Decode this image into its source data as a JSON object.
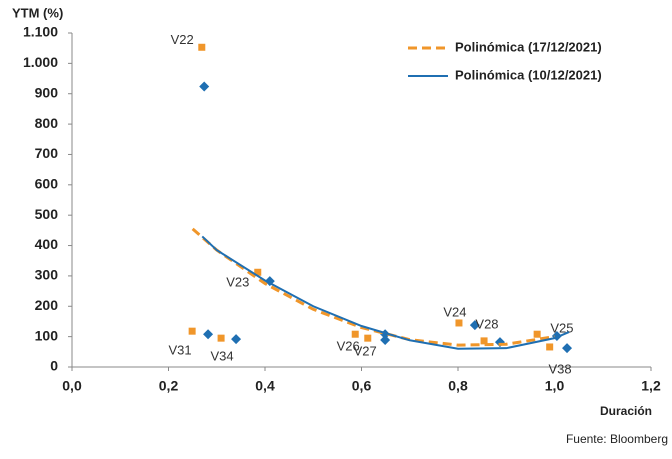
{
  "chart_data": {
    "type": "scatter",
    "y_label": "YTM (%)",
    "x_label": "Duración",
    "source": "Fuente: Bloomberg",
    "xlim": [
      0,
      1.2
    ],
    "xticks": [
      {
        "value": 0,
        "label": "0,0"
      },
      {
        "value": 0.2,
        "label": "0,2"
      },
      {
        "value": 0.4,
        "label": "0,4"
      },
      {
        "value": 0.6,
        "label": "0,6"
      },
      {
        "value": 0.8,
        "label": "0,8"
      },
      {
        "value": 1.0,
        "label": "1,0"
      },
      {
        "value": 1.2,
        "label": "1,2"
      }
    ],
    "ylim": [
      0,
      1100
    ],
    "yticks": [
      0,
      100,
      200,
      300,
      400,
      500,
      600,
      700,
      800,
      900,
      {
        "value": 1000,
        "label": "1.000"
      },
      {
        "value": 1100,
        "label": "1.100"
      }
    ],
    "legend": "top-right",
    "series": [
      {
        "type": "scatter",
        "marker": "square",
        "color": "#f0962a",
        "x": [
          0.269,
          0.249,
          0.309,
          0.385,
          0.587,
          0.613,
          0.802,
          0.854,
          0.964,
          0.99
        ],
        "values": [
          1053,
          118,
          95,
          312,
          108,
          95,
          145,
          86,
          108,
          66
        ]
      },
      {
        "type": "scatter",
        "marker": "diamond",
        "color": "#1f6fb2",
        "x": [
          0.274,
          0.282,
          0.34,
          0.41,
          0.649,
          0.649,
          0.835,
          0.887,
          1.005,
          1.026
        ],
        "values": [
          924,
          108,
          92,
          283,
          108,
          89,
          138,
          82,
          102,
          62
        ],
        "labels": [
          "V22",
          "V31",
          "V34",
          "V23",
          "V26",
          "V27",
          "V24",
          "V28",
          "V25",
          "V38"
        ]
      },
      {
        "type": "line",
        "name": "Polinómica (17/12/2021)",
        "color": "#f0962a",
        "dashed": true,
        "x": [
          0.25,
          0.3,
          0.4,
          0.5,
          0.6,
          0.7,
          0.8,
          0.9,
          1.0
        ],
        "values": [
          455,
          385,
          275,
          190,
          130,
          90,
          72,
          75,
          100
        ]
      },
      {
        "type": "line",
        "name": "Polinómica (10/12/2021)",
        "color": "#1f6fb2",
        "dashed": false,
        "x": [
          0.27,
          0.3,
          0.4,
          0.5,
          0.6,
          0.7,
          0.8,
          0.9,
          1.0,
          1.03
        ],
        "values": [
          430,
          385,
          285,
          200,
          135,
          88,
          60,
          62,
          95,
          115
        ]
      }
    ]
  }
}
